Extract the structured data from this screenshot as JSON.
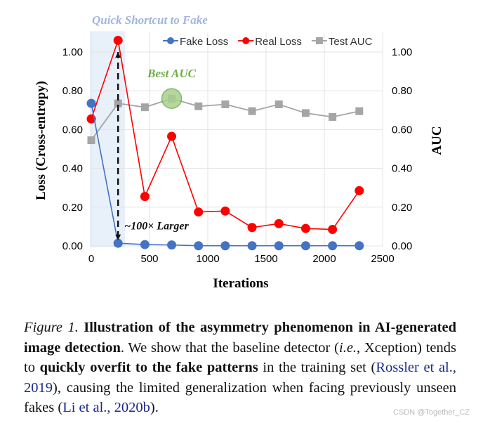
{
  "chart_data": {
    "type": "line",
    "xlabel": "Iterations",
    "ylabel": "Loss (Cross-entropy)",
    "y2label": "AUC",
    "xlim": [
      0,
      2500
    ],
    "ylim": [
      0,
      1.1
    ],
    "y2lim": [
      0,
      1.1
    ],
    "xticks": [
      "0",
      "500",
      "1000",
      "1500",
      "2000",
      "2500"
    ],
    "yticks": [
      "0.00",
      "0.20",
      "0.40",
      "0.60",
      "0.80",
      "1.00"
    ],
    "y2ticks": [
      "0.00",
      "0.20",
      "0.40",
      "0.60",
      "0.80",
      "1.00"
    ],
    "grid": true,
    "legend_placement": "top-right",
    "x": [
      0,
      230,
      460,
      690,
      920,
      1150,
      1380,
      1610,
      1840,
      2070,
      2300
    ],
    "series": [
      {
        "name": "Fake Loss",
        "axis": "left",
        "marker": "circle",
        "color": "#4472c4",
        "values": [
          0.735,
          0.014,
          0.007,
          0.005,
          0.001,
          0.001,
          0.001,
          0.001,
          0.001,
          0.001,
          0.001
        ]
      },
      {
        "name": "Real Loss",
        "axis": "left",
        "marker": "circle",
        "color": "#ff0000",
        "values": [
          0.655,
          1.06,
          0.255,
          0.565,
          0.175,
          0.18,
          0.095,
          0.115,
          0.09,
          0.085,
          0.285
        ]
      },
      {
        "name": "Test AUC",
        "axis": "right",
        "marker": "square",
        "color": "#a5a5a5",
        "values": [
          0.545,
          0.735,
          0.715,
          0.76,
          0.72,
          0.73,
          0.695,
          0.73,
          0.685,
          0.665,
          0.695
        ]
      }
    ],
    "annotations": {
      "shortcut": {
        "text": "Quick Shortcut to Fake",
        "x_range": [
          0,
          290
        ],
        "color": "#9fb4e0"
      },
      "best": {
        "text": "Best AUC",
        "x": 690,
        "y": 0.76,
        "color": "#70ad47"
      },
      "larger": {
        "text": "~100× Larger",
        "x": 230
      }
    }
  },
  "caption": {
    "label": "Figure 1.",
    "bold1": "Illustration of the asymmetry phenomenon in AI-generated image detection",
    "text1": ". We show that the baseline detector (",
    "ie": "i.e.",
    "text2": ", Xception) tends to ",
    "bold2": "quickly overfit to the fake patterns",
    "text3": " in the training set (",
    "cite1": "Rossler et al., 2019",
    "text4": "), causing the limited generalization when facing previously unseen fakes (",
    "cite2": "Li et al., 2020b",
    "text5": ")."
  },
  "watermark": "CSDN @Together_CZ"
}
